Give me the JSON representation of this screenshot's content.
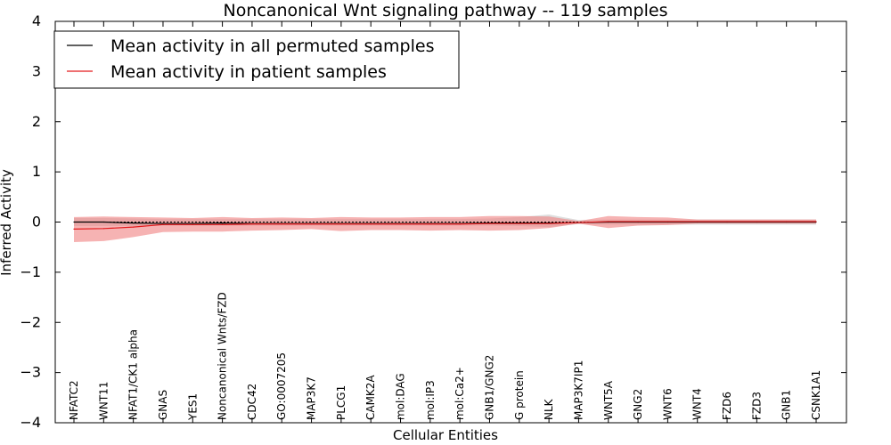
{
  "chart_data": {
    "type": "line",
    "title": "Noncanonical Wnt signaling pathway -- 119 samples",
    "xlabel": "Cellular Entities",
    "ylabel": "Inferred Activity",
    "ylim": [
      -4,
      4
    ],
    "yticks": [
      4,
      3,
      2,
      1,
      0,
      -1,
      -2,
      -3,
      -4
    ],
    "ytick_labels": [
      "4",
      "3",
      "2",
      "1",
      "0",
      "−1",
      "−2",
      "−3",
      "−4"
    ],
    "legend_position": "top-left",
    "categories": [
      "NFATC2",
      "WNT11",
      "NFAT1/CK1 alpha",
      "GNAS",
      "YES1",
      "Noncanonical Wnts/FZD",
      "CDC42",
      "GO:0007205",
      "MAP3K7",
      "PLCG1",
      "CAMK2A",
      "mol:DAG",
      "mol:IP3",
      "mol:Ca2+",
      "GNB1/GNG2",
      "G protein",
      "NLK",
      "MAP3K7IP1",
      "WNT5A",
      "GNG2",
      "WNT6",
      "WNT4",
      "FZD6",
      "FZD3",
      "GNB1",
      "CSNK1A1"
    ],
    "zero_line": "dotted",
    "series": [
      {
        "name": "Mean activity in all permuted samples",
        "color": "#000000",
        "values": [
          0.0,
          0.0,
          -0.02,
          -0.03,
          -0.03,
          -0.02,
          -0.03,
          -0.03,
          -0.03,
          -0.03,
          -0.03,
          -0.03,
          -0.03,
          -0.03,
          -0.02,
          -0.02,
          -0.02,
          -0.01,
          0.0,
          0.0,
          0.0,
          0.0,
          0.0,
          0.0,
          0.0,
          0.0
        ],
        "band_lower": [
          -0.08,
          -0.08,
          -0.08,
          -0.07,
          -0.07,
          -0.07,
          -0.07,
          -0.07,
          -0.07,
          -0.07,
          -0.07,
          -0.07,
          -0.07,
          -0.07,
          -0.07,
          -0.08,
          -0.1,
          -0.04,
          -0.05,
          -0.05,
          -0.05,
          -0.05,
          -0.05,
          -0.05,
          -0.05,
          -0.05
        ],
        "band_upper": [
          0.08,
          0.08,
          0.07,
          0.06,
          0.06,
          0.06,
          0.06,
          0.06,
          0.06,
          0.06,
          0.06,
          0.06,
          0.06,
          0.06,
          0.07,
          0.1,
          0.15,
          0.04,
          0.05,
          0.05,
          0.05,
          0.05,
          0.05,
          0.05,
          0.05,
          0.05
        ],
        "band_color": "#c8c8c8"
      },
      {
        "name": "Mean activity in patient samples",
        "color": "#e31a1c",
        "values": [
          -0.14,
          -0.13,
          -0.1,
          -0.05,
          -0.05,
          -0.05,
          -0.04,
          -0.04,
          -0.04,
          -0.04,
          -0.04,
          -0.04,
          -0.04,
          -0.04,
          -0.03,
          -0.03,
          -0.03,
          -0.01,
          0.01,
          0.01,
          0.01,
          0.01,
          0.01,
          0.01,
          0.01,
          0.01
        ],
        "band_lower": [
          -0.4,
          -0.38,
          -0.3,
          -0.2,
          -0.19,
          -0.19,
          -0.17,
          -0.16,
          -0.14,
          -0.18,
          -0.16,
          -0.16,
          -0.17,
          -0.16,
          -0.17,
          -0.16,
          -0.12,
          -0.03,
          -0.12,
          -0.07,
          -0.06,
          -0.03,
          -0.03,
          -0.03,
          -0.03,
          -0.03
        ],
        "band_upper": [
          0.1,
          0.11,
          0.1,
          0.09,
          0.08,
          0.1,
          0.08,
          0.09,
          0.08,
          0.1,
          0.09,
          0.09,
          0.1,
          0.1,
          0.12,
          0.12,
          0.11,
          0.02,
          0.12,
          0.1,
          0.09,
          0.05,
          0.05,
          0.05,
          0.05,
          0.05
        ],
        "band_color": "#f08080"
      }
    ]
  }
}
